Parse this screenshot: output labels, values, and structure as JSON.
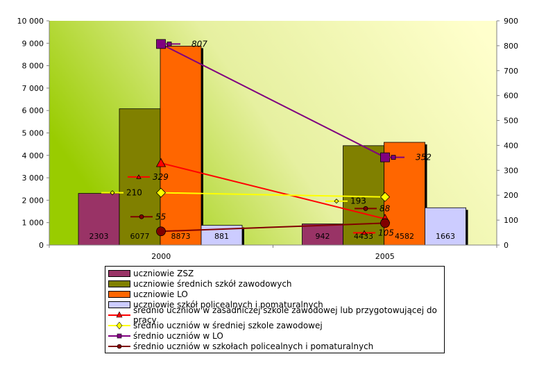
{
  "chart_data": {
    "type": "bar+line",
    "categories": [
      "2000",
      "2005"
    ],
    "left_axis": {
      "min": 0,
      "max": 10000,
      "step": 1000,
      "tick_labels": [
        "0",
        "1 000",
        "2 000",
        "3 000",
        "4 000",
        "5 000",
        "6 000",
        "7 000",
        "8 000",
        "9 000",
        "10 000"
      ]
    },
    "right_axis": {
      "min": 0,
      "max": 900,
      "step": 100,
      "tick_labels": [
        "0",
        "100",
        "200",
        "300",
        "400",
        "500",
        "600",
        "700",
        "800",
        "900"
      ]
    },
    "bar_series": [
      {
        "name": "uczniowie ZSZ",
        "color": "#993366",
        "values": [
          2303,
          942
        ],
        "labels": [
          "2303",
          "942"
        ]
      },
      {
        "name": "uczniowie średnich szkół zawodowych",
        "color": "#808000",
        "values": [
          6077,
          4433
        ],
        "labels": [
          "6077",
          "4433"
        ]
      },
      {
        "name": "uczniowie LO",
        "color": "#FF6600",
        "values": [
          8873,
          4582
        ],
        "labels": [
          "8873",
          "4582"
        ]
      },
      {
        "name": "uczniowie szkół policealnych i pomaturalnych",
        "color": "#CCCCFF",
        "values": [
          881,
          1663
        ],
        "labels": [
          "881",
          "1663"
        ]
      }
    ],
    "line_series": [
      {
        "name": "średnio uczniów w zasadniczej szkole zawodowej lub przygotowującej do pracy",
        "color": "#FF0000",
        "marker": "triangle",
        "values": [
          329,
          105
        ],
        "labels": [
          "329",
          "105"
        ]
      },
      {
        "name": "średnio uczniów w średniej szkole zawodowej",
        "color": "#FFFF00",
        "marker": "diamond",
        "values": [
          210,
          193
        ],
        "labels": [
          "210",
          "193"
        ]
      },
      {
        "name": "średnio uczniów w LO",
        "color": "#800080",
        "marker": "square",
        "values": [
          807,
          352
        ],
        "labels": [
          "807",
          "352"
        ]
      },
      {
        "name": "średnio uczniów w szkołach policealnych i pomaturalnych",
        "color": "#800000",
        "marker": "circle",
        "values": [
          55,
          88
        ],
        "labels": [
          "55",
          "88"
        ]
      }
    ],
    "plot_background": "gradient green to pale yellow",
    "legend_position": "bottom"
  }
}
